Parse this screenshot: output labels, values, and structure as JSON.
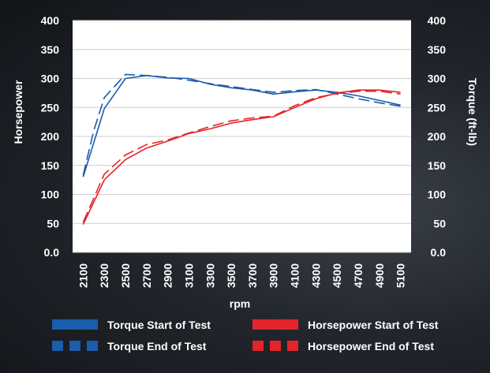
{
  "chart_data": {
    "type": "line",
    "title": "",
    "xlabel": "rpm",
    "ylabel_left": "Horsepower",
    "ylabel_right": "Torque (ft-lb)",
    "x_categories": [
      "2100",
      "2300",
      "2500",
      "2700",
      "2900",
      "3100",
      "3300",
      "3500",
      "3700",
      "3900",
      "4100",
      "4300",
      "4500",
      "4700",
      "4900",
      "5100"
    ],
    "x_values": [
      2100,
      2300,
      2500,
      2700,
      2900,
      3100,
      3300,
      3500,
      3700,
      3900,
      4100,
      4300,
      4500,
      4700,
      4900,
      5100
    ],
    "ylim_left": [
      0,
      400
    ],
    "ylim_right": [
      0,
      400
    ],
    "yticks_left": [
      "0.0",
      "50",
      "100",
      "150",
      "200",
      "250",
      "300",
      "350",
      "400"
    ],
    "yticks_right": [
      "0.0",
      "50",
      "100",
      "150",
      "200",
      "250",
      "300",
      "350",
      "400"
    ],
    "grid": "horizontal",
    "legend_position": "bottom",
    "series": [
      {
        "name": "Torque Start of Test",
        "color": "#1b5cab",
        "style": "solid",
        "axis": "right",
        "x": [
          2100,
          2300,
          2500,
          2700,
          2900,
          3100,
          3300,
          3500,
          3700,
          3900,
          4100,
          4300,
          4500,
          4700,
          4900,
          5100
        ],
        "values": [
          130,
          248,
          300,
          305,
          301,
          300,
          290,
          284,
          280,
          273,
          277,
          280,
          276,
          270,
          262,
          254
        ]
      },
      {
        "name": "Torque End of Test",
        "color": "#1b5cab",
        "style": "dashed",
        "axis": "right",
        "x": [
          2100,
          2200,
          2300,
          2500,
          2700,
          2900,
          3100,
          3300,
          3500,
          3700,
          3900,
          4100,
          4300,
          4500,
          4700,
          4900,
          5100
        ],
        "values": [
          133,
          210,
          267,
          307,
          305,
          302,
          297,
          291,
          286,
          281,
          276,
          279,
          281,
          273,
          265,
          258,
          252
        ]
      },
      {
        "name": "Horsepower Start of Test",
        "color": "#e3242b",
        "style": "solid",
        "axis": "left",
        "x": [
          2100,
          2300,
          2500,
          2700,
          2900,
          3100,
          3300,
          3500,
          3700,
          3900,
          4100,
          4300,
          4500,
          4700,
          4900,
          5100
        ],
        "values": [
          48,
          125,
          160,
          180,
          192,
          205,
          213,
          223,
          229,
          234,
          250,
          265,
          275,
          280,
          280,
          276
        ]
      },
      {
        "name": "Horsepower End of Test",
        "color": "#e3242b",
        "style": "dashed",
        "axis": "left",
        "x": [
          2100,
          2300,
          2500,
          2700,
          2900,
          3100,
          3300,
          3500,
          3700,
          3900,
          4100,
          4300,
          4500,
          4700,
          4900,
          5100
        ],
        "values": [
          52,
          135,
          168,
          186,
          194,
          206,
          217,
          227,
          232,
          235,
          253,
          267,
          274,
          278,
          278,
          273
        ]
      }
    ]
  },
  "legend": {
    "torque_start": "Torque Start of Test",
    "torque_end": "Torque End of Test",
    "hp_start": "Horsepower Start of Test",
    "hp_end": "Horsepower End of Test"
  }
}
